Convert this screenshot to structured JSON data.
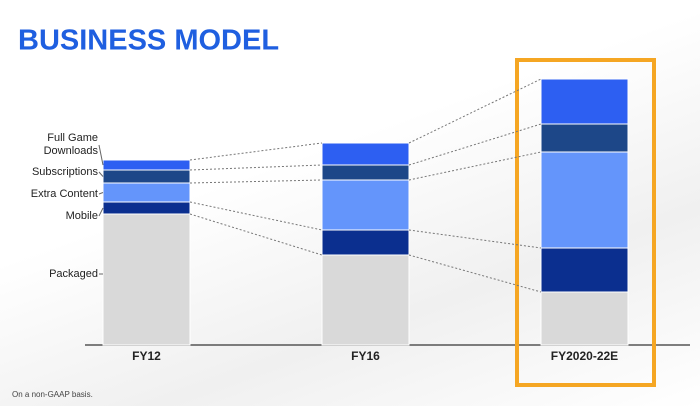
{
  "chart_data": {
    "type": "stacked-bar",
    "title": "BUSINESS MODEL",
    "categories": [
      "FY12",
      "FY16",
      "FY2020-22E"
    ],
    "series": [
      {
        "name": "Packaged",
        "color": "#d9d9d9",
        "values": [
          131,
          90,
          53
        ]
      },
      {
        "name": "Mobile",
        "color": "#0b2f8f",
        "values": [
          12,
          25,
          44
        ]
      },
      {
        "name": "Extra Content",
        "color": "#6495fb",
        "values": [
          19,
          50,
          96
        ]
      },
      {
        "name": "Subscriptions",
        "color": "#1d4788",
        "values": [
          13,
          15,
          28
        ]
      },
      {
        "name": "Full Game Downloads",
        "color": "#2d5ff2",
        "values": [
          10,
          22,
          45
        ]
      }
    ],
    "footnote": "On a non-GAAP basis."
  }
}
